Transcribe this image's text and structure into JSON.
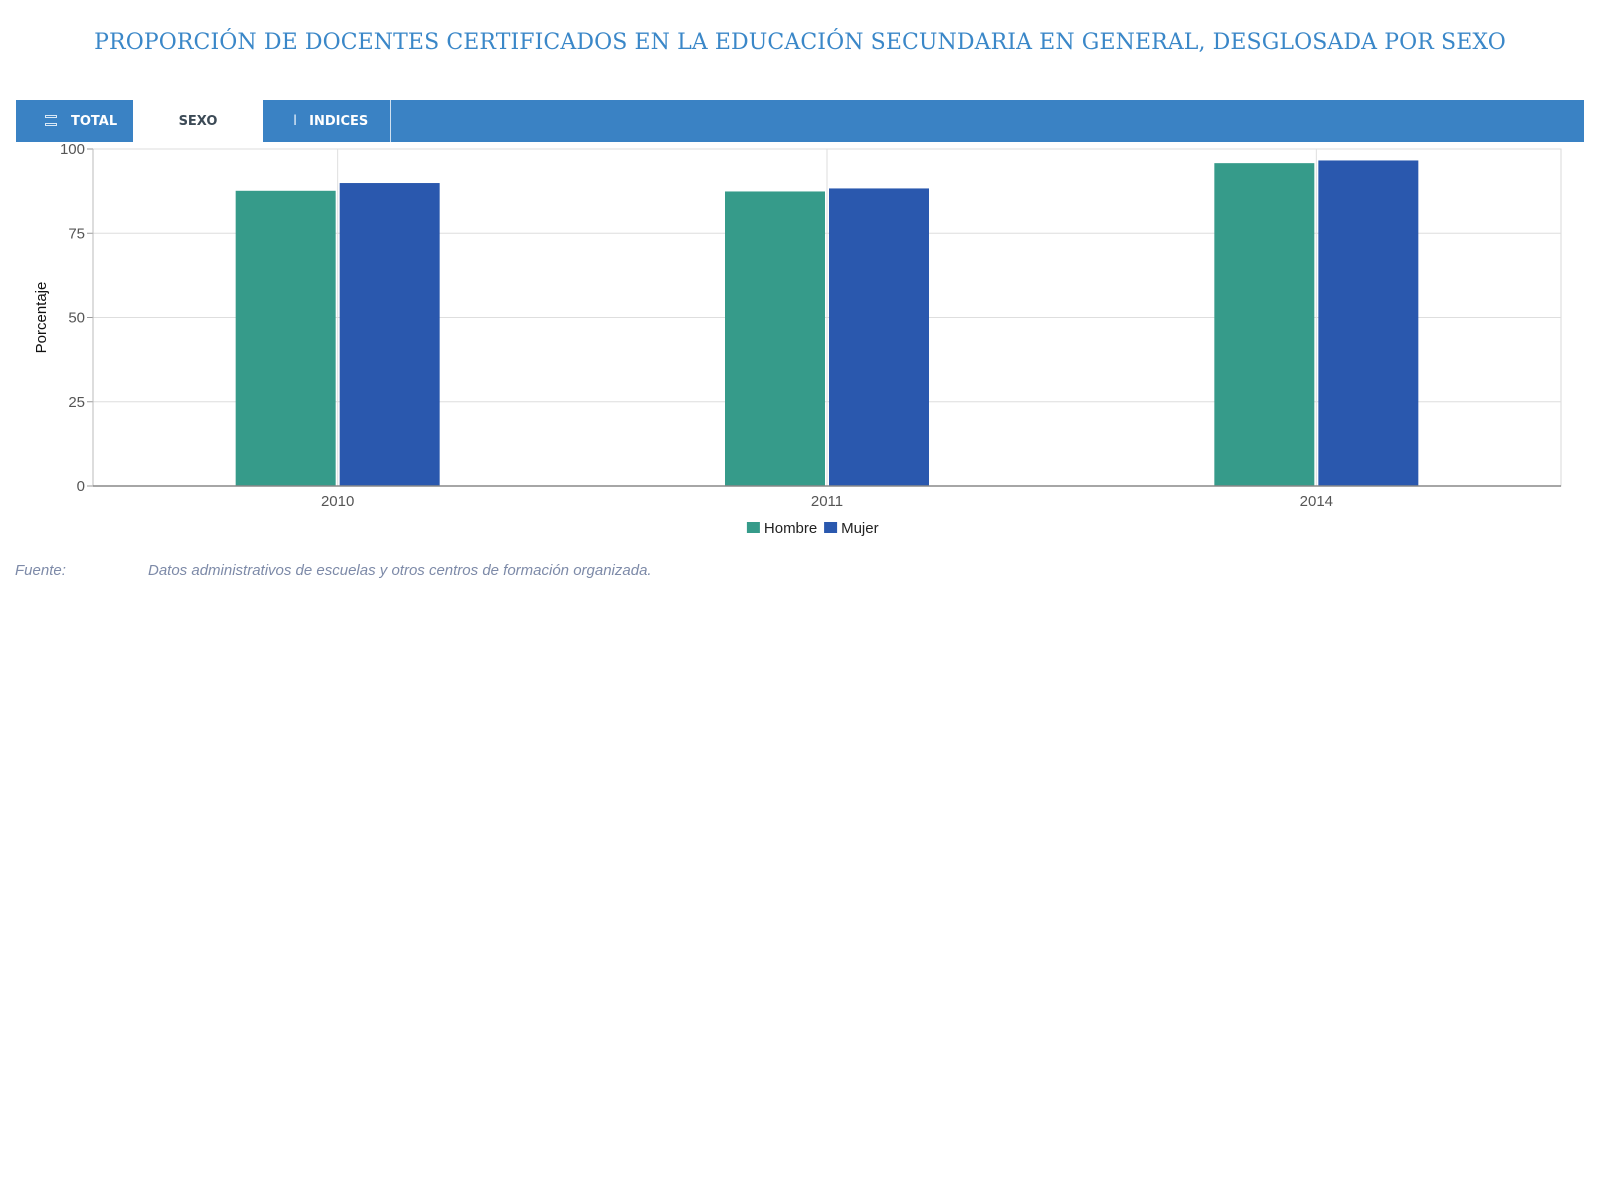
{
  "title": "PROPORCIÓN DE DOCENTES CERTIFICADOS EN LA EDUCACIÓN SECUNDARIA EN GENERAL, DESGLOSADA POR SEXO",
  "tabs": [
    {
      "label": "TOTAL",
      "icon": "list-icon",
      "active": false
    },
    {
      "label": "SEXO",
      "icon": null,
      "active": true
    },
    {
      "label": "INDICES",
      "icon": "cursor-icon",
      "active": false
    }
  ],
  "colors": {
    "accent": "#3a82c4",
    "title": "#3a87c8",
    "hombre": "#369b8a",
    "mujer": "#2a58ae"
  },
  "chart_data": {
    "type": "bar",
    "title": "PROPORCIÓN DE DOCENTES CERTIFICADOS EN LA EDUCACIÓN SECUNDARIA EN GENERAL, DESGLOSADA POR SEXO",
    "categories": [
      "2010",
      "2011",
      "2014"
    ],
    "series": [
      {
        "name": "Hombre",
        "values": [
          87.6,
          87.4,
          95.8
        ],
        "color": "#369b8a"
      },
      {
        "name": "Mujer",
        "values": [
          89.9,
          88.3,
          96.6
        ],
        "color": "#2a58ae"
      }
    ],
    "xlabel": "",
    "ylabel": "Porcentaje",
    "ylim": [
      0,
      100
    ],
    "yticks": [
      0,
      25,
      50,
      75,
      100
    ],
    "grid": true,
    "legend": "bottom-center"
  },
  "source": {
    "label": "Fuente:",
    "text": "Datos administrativos de escuelas y otros centros de formación organizada."
  }
}
